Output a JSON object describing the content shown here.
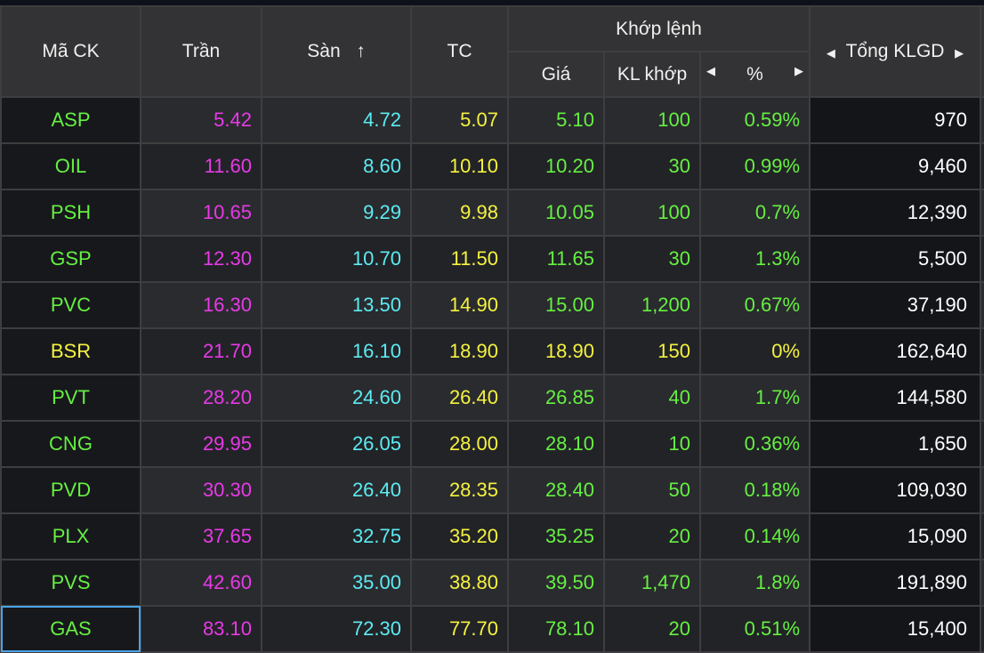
{
  "header": {
    "symbol": "Mã CK",
    "ceiling": "Trần",
    "floor": "Sàn",
    "floor_sort_icon": "↑",
    "ref": "TC",
    "match_group": "Khớp lệnh",
    "price": "Giá",
    "match_vol": "KL khớp",
    "pct": "%",
    "total": "Tổng KLGD"
  },
  "colors": {
    "up": "#66f042",
    "ceiling": "#e83ae6",
    "floor": "#5cecf2",
    "ref": "#f4f240"
  },
  "rows": [
    {
      "sym": "ASP",
      "ceil": "5.42",
      "floor": "4.72",
      "ref": "5.07",
      "price": "5.10",
      "vol": "100",
      "pct": "0.59%",
      "total": "970",
      "state": "up"
    },
    {
      "sym": "OIL",
      "ceil": "11.60",
      "floor": "8.60",
      "ref": "10.10",
      "price": "10.20",
      "vol": "30",
      "pct": "0.99%",
      "total": "9,460",
      "state": "up"
    },
    {
      "sym": "PSH",
      "ceil": "10.65",
      "floor": "9.29",
      "ref": "9.98",
      "price": "10.05",
      "vol": "100",
      "pct": "0.7%",
      "total": "12,390",
      "state": "up"
    },
    {
      "sym": "GSP",
      "ceil": "12.30",
      "floor": "10.70",
      "ref": "11.50",
      "price": "11.65",
      "vol": "30",
      "pct": "1.3%",
      "total": "5,500",
      "state": "up"
    },
    {
      "sym": "PVC",
      "ceil": "16.30",
      "floor": "13.50",
      "ref": "14.90",
      "price": "15.00",
      "vol": "1,200",
      "pct": "0.67%",
      "total": "37,190",
      "state": "up"
    },
    {
      "sym": "BSR",
      "ceil": "21.70",
      "floor": "16.10",
      "ref": "18.90",
      "price": "18.90",
      "vol": "150",
      "pct": "0%",
      "total": "162,640",
      "state": "ref"
    },
    {
      "sym": "PVT",
      "ceil": "28.20",
      "floor": "24.60",
      "ref": "26.40",
      "price": "26.85",
      "vol": "40",
      "pct": "1.7%",
      "total": "144,580",
      "state": "up"
    },
    {
      "sym": "CNG",
      "ceil": "29.95",
      "floor": "26.05",
      "ref": "28.00",
      "price": "28.10",
      "vol": "10",
      "pct": "0.36%",
      "total": "1,650",
      "state": "up"
    },
    {
      "sym": "PVD",
      "ceil": "30.30",
      "floor": "26.40",
      "ref": "28.35",
      "price": "28.40",
      "vol": "50",
      "pct": "0.18%",
      "total": "109,030",
      "state": "up"
    },
    {
      "sym": "PLX",
      "ceil": "37.65",
      "floor": "32.75",
      "ref": "35.20",
      "price": "35.25",
      "vol": "20",
      "pct": "0.14%",
      "total": "15,090",
      "state": "up"
    },
    {
      "sym": "PVS",
      "ceil": "42.60",
      "floor": "35.00",
      "ref": "38.80",
      "price": "39.50",
      "vol": "1,470",
      "pct": "1.8%",
      "total": "191,890",
      "state": "up"
    },
    {
      "sym": "GAS",
      "ceil": "83.10",
      "floor": "72.30",
      "ref": "77.70",
      "price": "78.10",
      "vol": "20",
      "pct": "0.51%",
      "total": "15,400",
      "state": "up",
      "selected": true
    }
  ]
}
